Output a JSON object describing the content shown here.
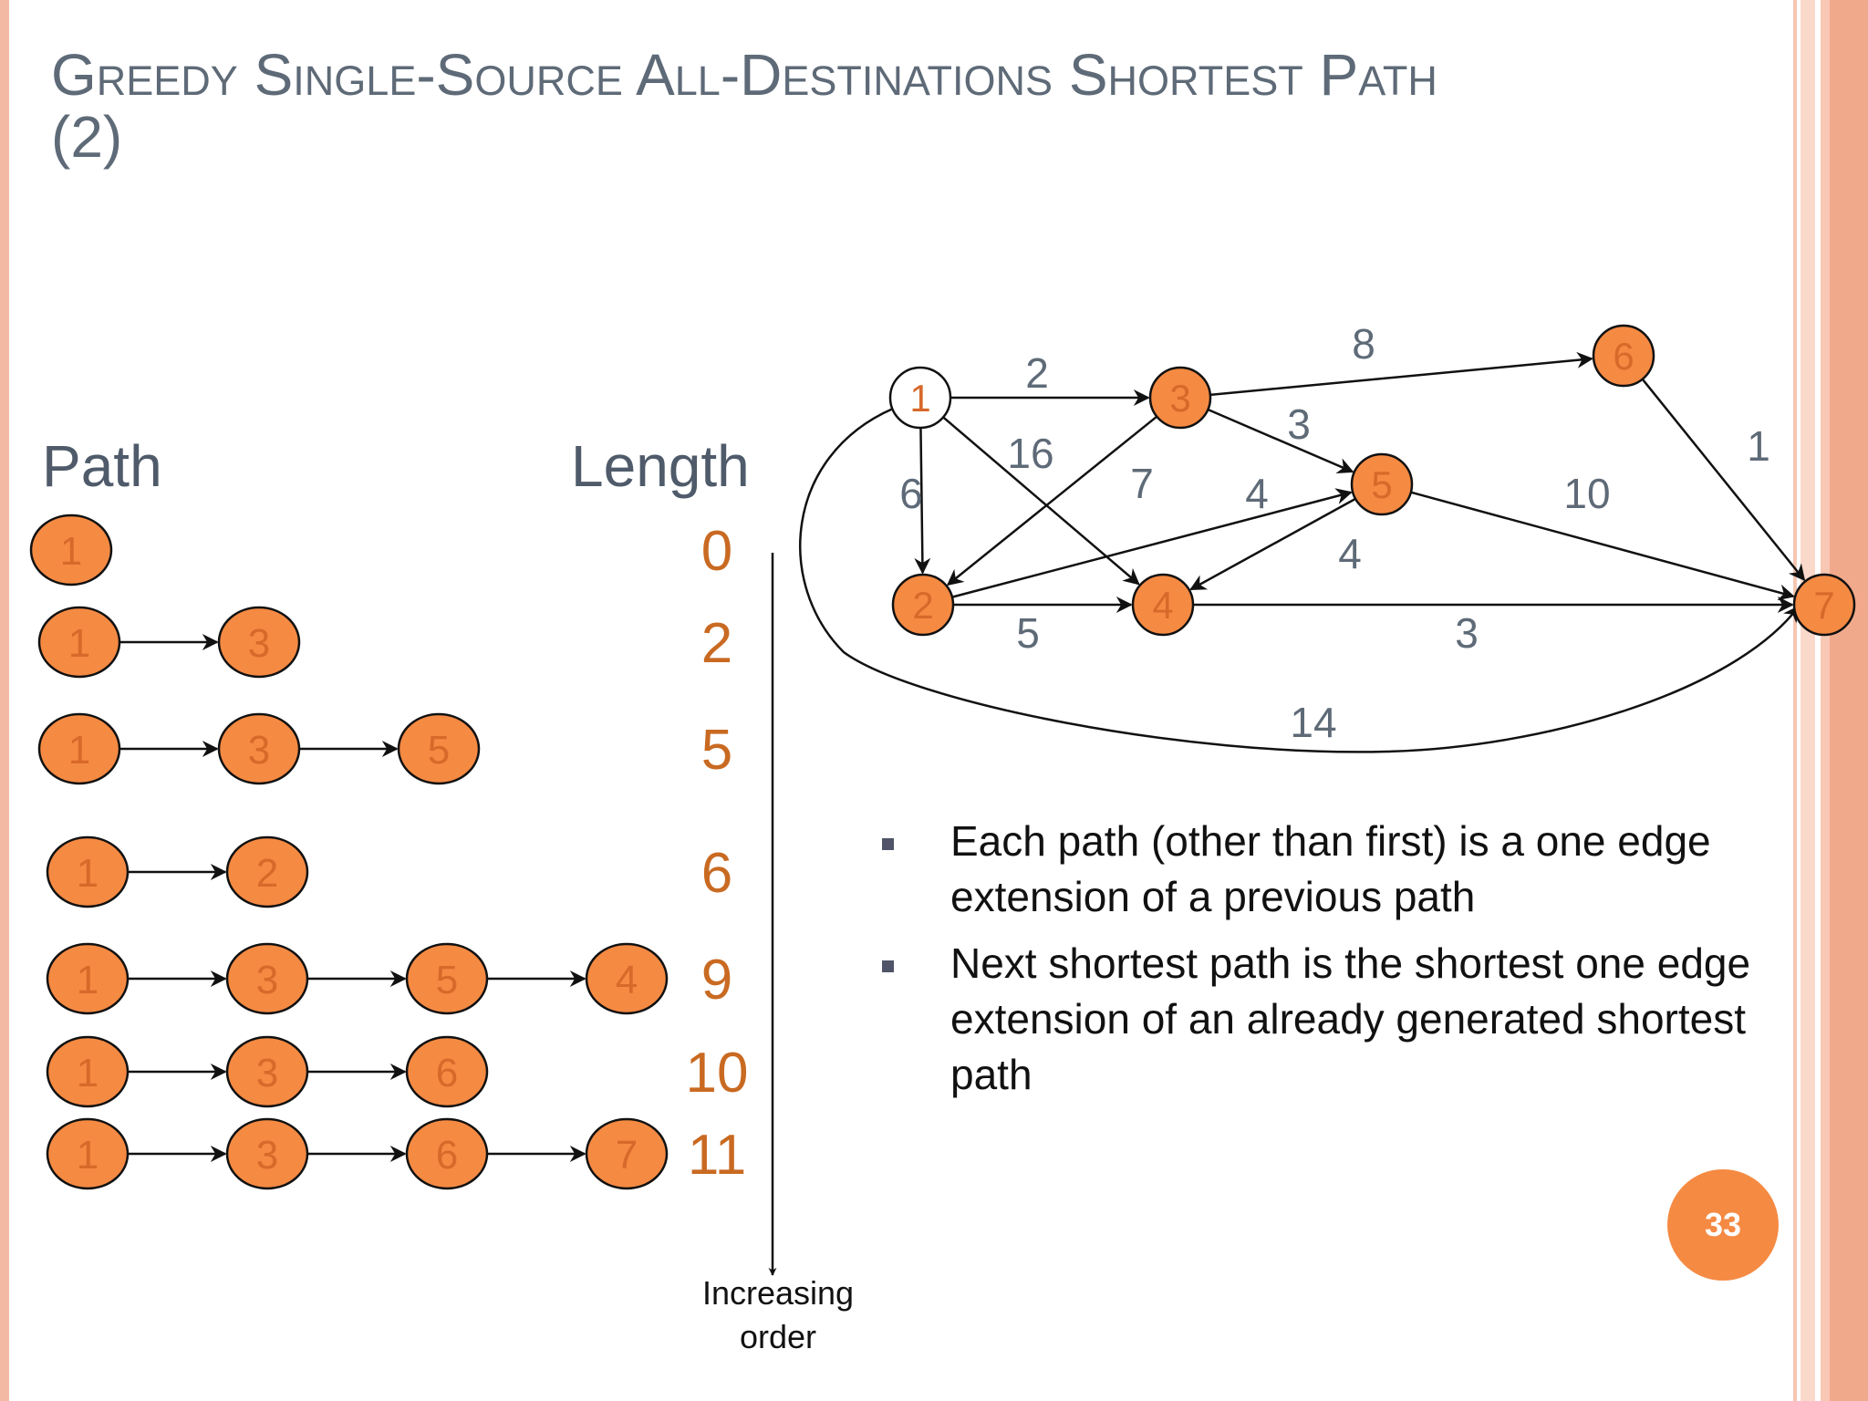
{
  "title": {
    "line1": "Greedy Single-Source All-Destinations Shortest Path",
    "line2": "(2)"
  },
  "headings": {
    "path": "Path",
    "length": "Length"
  },
  "colors": {
    "node_fill": "#f58a43",
    "node_label": "#d7692a",
    "length_text": "#c96a22",
    "edge_label": "#5e6a77",
    "title": "#5e6a77"
  },
  "paths": [
    {
      "nodes": [
        "1"
      ],
      "length": "0"
    },
    {
      "nodes": [
        "1",
        "3"
      ],
      "length": "2"
    },
    {
      "nodes": [
        "1",
        "3",
        "5"
      ],
      "length": "5"
    },
    {
      "nodes": [
        "1",
        "2"
      ],
      "length": "6"
    },
    {
      "nodes": [
        "1",
        "3",
        "5",
        "4"
      ],
      "length": "9"
    },
    {
      "nodes": [
        "1",
        "3",
        "6"
      ],
      "length": "10"
    },
    {
      "nodes": [
        "1",
        "3",
        "6",
        "7"
      ],
      "length": "11"
    }
  ],
  "order_label": [
    "Increasing",
    "order"
  ],
  "graph": {
    "nodes": [
      {
        "id": "1",
        "source": true
      },
      {
        "id": "2"
      },
      {
        "id": "3"
      },
      {
        "id": "4"
      },
      {
        "id": "5"
      },
      {
        "id": "6"
      },
      {
        "id": "7"
      }
    ],
    "edges": [
      {
        "from": "1",
        "to": "3",
        "weight": "2"
      },
      {
        "from": "1",
        "to": "2",
        "weight": "6"
      },
      {
        "from": "1",
        "to": "4",
        "weight": "16"
      },
      {
        "from": "1",
        "to": "7",
        "weight": "14"
      },
      {
        "from": "3",
        "to": "6",
        "weight": "8"
      },
      {
        "from": "3",
        "to": "5",
        "weight": "3"
      },
      {
        "from": "3",
        "to": "2",
        "weight": "7"
      },
      {
        "from": "2",
        "to": "5",
        "weight": "4"
      },
      {
        "from": "2",
        "to": "4",
        "weight": "5"
      },
      {
        "from": "5",
        "to": "4",
        "weight": "4"
      },
      {
        "from": "5",
        "to": "7",
        "weight": "10"
      },
      {
        "from": "4",
        "to": "7",
        "weight": "3"
      },
      {
        "from": "6",
        "to": "7",
        "weight": "1"
      }
    ]
  },
  "bullets": [
    "Each path (other than first) is a one edge extension of a previous path",
    "Next shortest path is the shortest one edge extension of an already generated shortest path"
  ],
  "page_number": "33"
}
